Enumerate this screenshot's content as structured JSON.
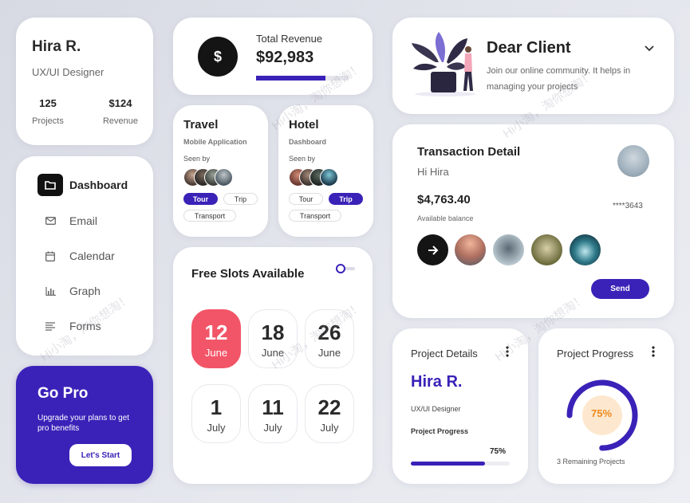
{
  "profile": {
    "name": "Hira R.",
    "role": "UX/UI Designer",
    "projects_value": "125",
    "projects_label": "Projects",
    "revenue_value": "$124",
    "revenue_label": "Revenue"
  },
  "nav": {
    "items": [
      {
        "label": "Dashboard",
        "icon": "folder-icon",
        "active": true
      },
      {
        "label": "Email",
        "icon": "mail-icon"
      },
      {
        "label": "Calendar",
        "icon": "calendar-icon"
      },
      {
        "label": "Graph",
        "icon": "bar-chart-icon"
      },
      {
        "label": "Forms",
        "icon": "list-icon"
      }
    ]
  },
  "gopro": {
    "title": "Go Pro",
    "desc": "Upgrade your plans to get pro benefits",
    "button": "Let's Start"
  },
  "revenue": {
    "symbol": "$",
    "label": "Total Revenue",
    "value": "$92,983",
    "progress": 0.75
  },
  "travel": {
    "title": "Travel",
    "subtitle": "Mobile Application",
    "seen": "Seen by",
    "tags": [
      "Tour",
      "Trip",
      "Transport"
    ],
    "active_tag": "Tour"
  },
  "hotel": {
    "title": "Hotel",
    "subtitle": "Dashboard",
    "seen": "Seen by",
    "tags": [
      "Tour",
      "Trip",
      "Transport"
    ],
    "active_tag": "Trip"
  },
  "slots": {
    "title": "Free Slots Available",
    "items": [
      {
        "day": "12",
        "month": "June",
        "selected": true
      },
      {
        "day": "18",
        "month": "June"
      },
      {
        "day": "26",
        "month": "June"
      },
      {
        "day": "1",
        "month": "July"
      },
      {
        "day": "11",
        "month": "July"
      },
      {
        "day": "22",
        "month": "July"
      }
    ]
  },
  "client": {
    "title": "Dear Client",
    "desc": "Join our online community. It helps in managing your projects"
  },
  "transaction": {
    "title": "Transaction Detail",
    "greeting": "Hi Hira",
    "amount": "$4,763.40",
    "amount_label": "Available balance",
    "card": "****3643",
    "send": "Send"
  },
  "project_details": {
    "title": "Project Details",
    "name": "Hira R.",
    "role": "UX/UI Designer",
    "progress_label": "Project Progress",
    "progress_text": "75%",
    "progress": 0.75
  },
  "project_progress": {
    "title": "Project Progress",
    "percent_text": "75%",
    "progress": 0.75,
    "remaining": "3 Remaining Projects"
  },
  "colors": {
    "accent": "#3a22b8",
    "highlight": "#f25567",
    "orange": "#f08a1c"
  }
}
